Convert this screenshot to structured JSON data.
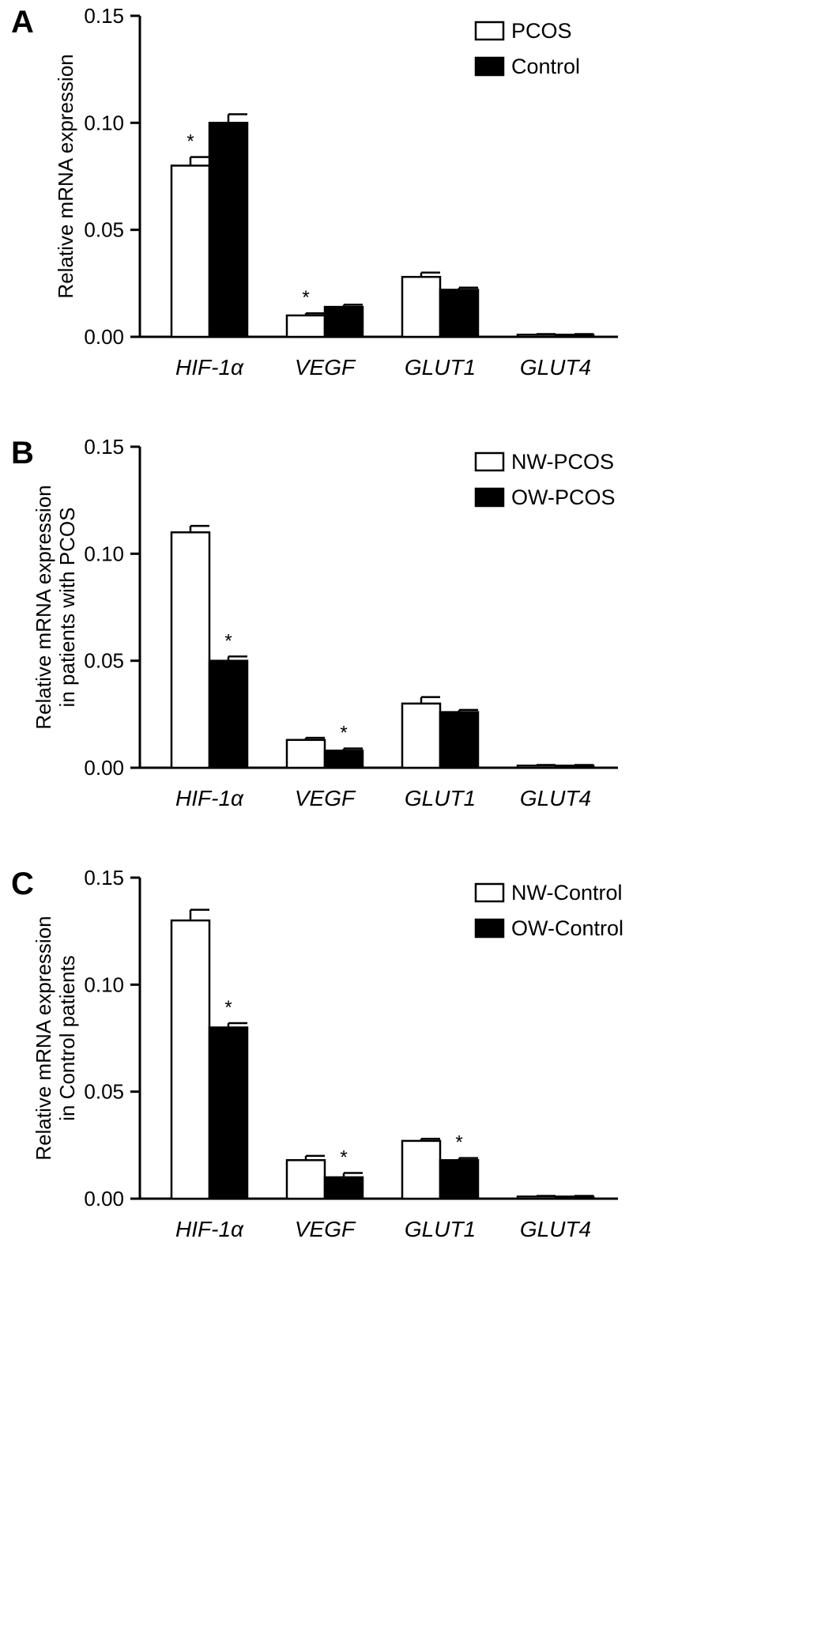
{
  "chart_data": [
    {
      "panel": "A",
      "type": "bar",
      "categories": [
        "HIF-1α",
        "VEGF",
        "GLUT1",
        "GLUT4"
      ],
      "series": [
        {
          "name": "PCOS",
          "fill": "#ffffff",
          "values": [
            0.08,
            0.01,
            0.028,
            0.001
          ],
          "errors": [
            0.004,
            0.001,
            0.002,
            0.0003
          ]
        },
        {
          "name": "Control",
          "fill": "#000000",
          "values": [
            0.1,
            0.014,
            0.022,
            0.001
          ],
          "errors": [
            0.004,
            0.001,
            0.001,
            0.0003
          ]
        }
      ],
      "significance": [
        {
          "category": 0,
          "series": 0,
          "mark": "*"
        },
        {
          "category": 1,
          "series": 0,
          "mark": "*"
        }
      ],
      "ylabel": [
        "Relative mRNA expression"
      ],
      "ylim": [
        0,
        0.15
      ],
      "yticks": [
        "0.00",
        "0.05",
        "0.10",
        "0.15"
      ],
      "legend_position": "top-right"
    },
    {
      "panel": "B",
      "type": "bar",
      "categories": [
        "HIF-1α",
        "VEGF",
        "GLUT1",
        "GLUT4"
      ],
      "series": [
        {
          "name": "NW-PCOS",
          "fill": "#ffffff",
          "values": [
            0.11,
            0.013,
            0.03,
            0.001
          ],
          "errors": [
            0.003,
            0.001,
            0.003,
            0.0003
          ]
        },
        {
          "name": "OW-PCOS",
          "fill": "#000000",
          "values": [
            0.05,
            0.008,
            0.026,
            0.001
          ],
          "errors": [
            0.002,
            0.001,
            0.001,
            0.0003
          ]
        }
      ],
      "significance": [
        {
          "category": 0,
          "series": 1,
          "mark": "*"
        },
        {
          "category": 1,
          "series": 1,
          "mark": "*"
        }
      ],
      "ylabel": [
        "Relative mRNA expression",
        "in patients with PCOS"
      ],
      "ylim": [
        0,
        0.15
      ],
      "yticks": [
        "0.00",
        "0.05",
        "0.10",
        "0.15"
      ],
      "legend_position": "top-right"
    },
    {
      "panel": "C",
      "type": "bar",
      "categories": [
        "HIF-1α",
        "VEGF",
        "GLUT1",
        "GLUT4"
      ],
      "series": [
        {
          "name": "NW-Control",
          "fill": "#ffffff",
          "values": [
            0.13,
            0.018,
            0.027,
            0.001
          ],
          "errors": [
            0.005,
            0.002,
            0.001,
            0.0003
          ]
        },
        {
          "name": "OW-Control",
          "fill": "#000000",
          "values": [
            0.08,
            0.01,
            0.018,
            0.001
          ],
          "errors": [
            0.002,
            0.002,
            0.001,
            0.0003
          ]
        }
      ],
      "significance": [
        {
          "category": 0,
          "series": 1,
          "mark": "*"
        },
        {
          "category": 1,
          "series": 1,
          "mark": "*"
        },
        {
          "category": 2,
          "series": 1,
          "mark": "*"
        }
      ],
      "ylabel": [
        "Relative mRNA expression",
        "in Control patients"
      ],
      "ylim": [
        0,
        0.15
      ],
      "yticks": [
        "0.00",
        "0.05",
        "0.10",
        "0.15"
      ],
      "legend_position": "top-right"
    }
  ]
}
